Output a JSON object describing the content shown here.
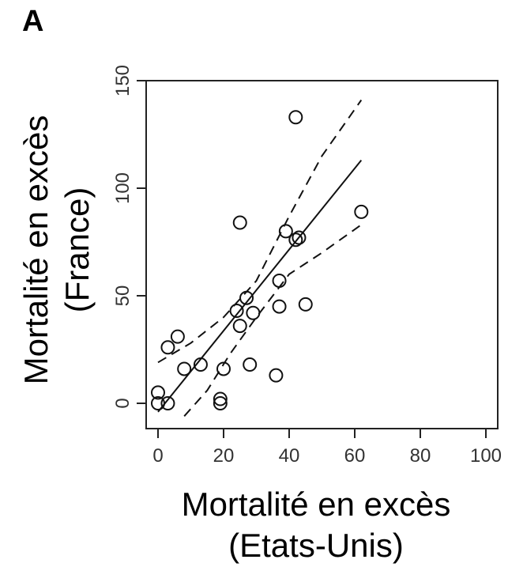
{
  "panel_label": "A",
  "chart_data": {
    "type": "scatter",
    "xlabel_line1": "Mortalité en excès",
    "xlabel_line2": "(Etats-Unis)",
    "ylabel_line1": "Mortalité en excès",
    "ylabel_line2": "(France)",
    "xlim": [
      0,
      100
    ],
    "ylim": [
      0,
      150
    ],
    "x_ticks": [
      0,
      20,
      40,
      60,
      80,
      100
    ],
    "y_ticks": [
      0,
      50,
      100,
      150
    ],
    "grid": false,
    "points": [
      {
        "x": 0,
        "y": 5
      },
      {
        "x": 0,
        "y": 0
      },
      {
        "x": 3,
        "y": 0
      },
      {
        "x": 3,
        "y": 26
      },
      {
        "x": 6,
        "y": 31
      },
      {
        "x": 8,
        "y": 16
      },
      {
        "x": 13,
        "y": 18
      },
      {
        "x": 19,
        "y": 2
      },
      {
        "x": 19,
        "y": 0
      },
      {
        "x": 20,
        "y": 16
      },
      {
        "x": 24,
        "y": 43
      },
      {
        "x": 25,
        "y": 36
      },
      {
        "x": 25,
        "y": 84
      },
      {
        "x": 27,
        "y": 49
      },
      {
        "x": 28,
        "y": 18
      },
      {
        "x": 29,
        "y": 42
      },
      {
        "x": 36,
        "y": 13
      },
      {
        "x": 37,
        "y": 57
      },
      {
        "x": 37,
        "y": 45
      },
      {
        "x": 39,
        "y": 80
      },
      {
        "x": 42,
        "y": 76
      },
      {
        "x": 43,
        "y": 77
      },
      {
        "x": 42,
        "y": 133
      },
      {
        "x": 45,
        "y": 46
      },
      {
        "x": 62,
        "y": 89
      }
    ],
    "fit_line": {
      "x": [
        0,
        62
      ],
      "y": [
        -4,
        113
      ]
    },
    "confidence_upper": {
      "x": [
        0,
        10,
        20,
        30,
        40,
        50,
        62
      ],
      "y": [
        19,
        28,
        40,
        57,
        87,
        115,
        141
      ]
    },
    "confidence_lower": {
      "x": [
        8,
        15,
        22,
        30,
        40,
        50,
        62
      ],
      "y": [
        -6,
        6,
        23,
        40,
        60,
        70,
        83
      ]
    }
  }
}
